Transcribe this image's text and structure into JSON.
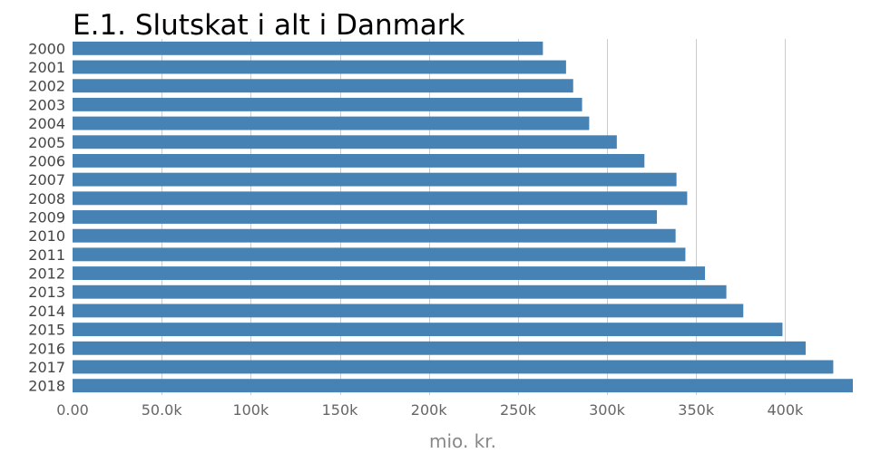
{
  "chart_data": {
    "type": "bar",
    "orientation": "horizontal",
    "title": "E.1. Slutskat i alt i Danmark",
    "xlabel": "mio. kr.",
    "ylabel": "",
    "categories": [
      "2000",
      "2001",
      "2002",
      "2003",
      "2004",
      "2005",
      "2006",
      "2007",
      "2008",
      "2009",
      "2010",
      "2011",
      "2012",
      "2013",
      "2014",
      "2015",
      "2016",
      "2017",
      "2018"
    ],
    "values": [
      264000,
      277000,
      281000,
      286000,
      290000,
      305500,
      321000,
      339000,
      345000,
      328000,
      338500,
      344000,
      355000,
      367000,
      376500,
      398500,
      411500,
      427000,
      438000
    ],
    "x_ticks": [
      "0.00",
      "50.0k",
      "100k",
      "150k",
      "200k",
      "250k",
      "300k",
      "350k",
      "400k"
    ],
    "x_tick_values": [
      0,
      50000,
      100000,
      150000,
      200000,
      250000,
      300000,
      350000,
      400000
    ],
    "xlim": [
      0,
      438000
    ],
    "grid": true,
    "bar_color": "#4682b4",
    "grid_color": "#cccccc"
  }
}
